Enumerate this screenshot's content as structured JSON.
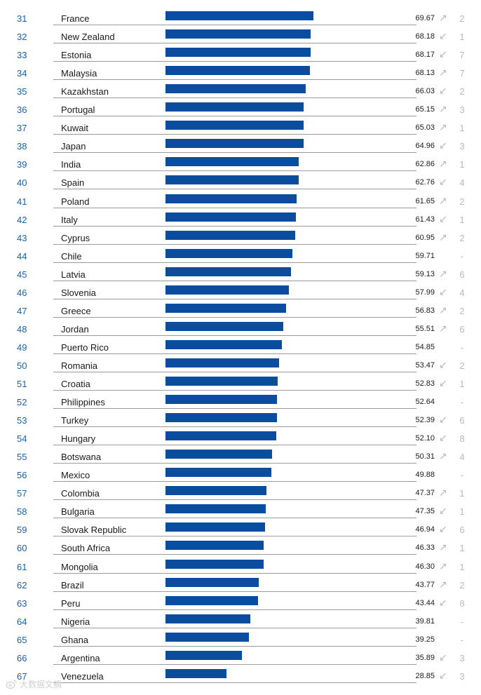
{
  "chart_data": {
    "type": "bar",
    "orientation": "horizontal",
    "title": "",
    "xlabel": "",
    "ylabel": "",
    "xlim": [
      0,
      100
    ],
    "colors": {
      "bar": "#0a4c9e",
      "rank": "#1d5fa8",
      "change": "#b9b9b9"
    },
    "rows": [
      {
        "rank": "31",
        "country": "France",
        "score": "69.67",
        "value": 69.67,
        "direction": "up",
        "change": "2"
      },
      {
        "rank": "32",
        "country": "New Zealand",
        "score": "68.18",
        "value": 68.18,
        "direction": "down",
        "change": "1"
      },
      {
        "rank": "33",
        "country": "Estonia",
        "score": "68.17",
        "value": 68.17,
        "direction": "down",
        "change": "7"
      },
      {
        "rank": "34",
        "country": "Malaysia",
        "score": "68.13",
        "value": 68.13,
        "direction": "up",
        "change": "7"
      },
      {
        "rank": "35",
        "country": "Kazakhstan",
        "score": "66.03",
        "value": 66.03,
        "direction": "down",
        "change": "2"
      },
      {
        "rank": "36",
        "country": "Portugal",
        "score": "65.15",
        "value": 65.15,
        "direction": "up",
        "change": "3"
      },
      {
        "rank": "37",
        "country": "Kuwait",
        "score": "65.03",
        "value": 65.03,
        "direction": "up",
        "change": "1"
      },
      {
        "rank": "38",
        "country": "Japan",
        "score": "64.96",
        "value": 64.96,
        "direction": "down",
        "change": "3"
      },
      {
        "rank": "39",
        "country": "India",
        "score": "62.86",
        "value": 62.86,
        "direction": "up",
        "change": "1"
      },
      {
        "rank": "40",
        "country": "Spain",
        "score": "62.76",
        "value": 62.76,
        "direction": "down",
        "change": "4"
      },
      {
        "rank": "41",
        "country": "Poland",
        "score": "61.65",
        "value": 61.65,
        "direction": "up",
        "change": "2"
      },
      {
        "rank": "42",
        "country": "Italy",
        "score": "61.43",
        "value": 61.43,
        "direction": "down",
        "change": "1"
      },
      {
        "rank": "43",
        "country": "Cyprus",
        "score": "60.95",
        "value": 60.95,
        "direction": "up",
        "change": "2"
      },
      {
        "rank": "44",
        "country": "Chile",
        "score": "59.71",
        "value": 59.71,
        "direction": "none",
        "change": "-"
      },
      {
        "rank": "45",
        "country": "Latvia",
        "score": "59.13",
        "value": 59.13,
        "direction": "up",
        "change": "6"
      },
      {
        "rank": "46",
        "country": "Slovenia",
        "score": "57.99",
        "value": 57.99,
        "direction": "down",
        "change": "4"
      },
      {
        "rank": "47",
        "country": "Greece",
        "score": "56.83",
        "value": 56.83,
        "direction": "up",
        "change": "2"
      },
      {
        "rank": "48",
        "country": "Jordan",
        "score": "55.51",
        "value": 55.51,
        "direction": "up",
        "change": "6"
      },
      {
        "rank": "49",
        "country": "Puerto Rico",
        "score": "54.85",
        "value": 54.85,
        "direction": "none",
        "change": "-"
      },
      {
        "rank": "50",
        "country": "Romania",
        "score": "53.47",
        "value": 53.47,
        "direction": "down",
        "change": "2"
      },
      {
        "rank": "51",
        "country": "Croatia",
        "score": "52.83",
        "value": 52.83,
        "direction": "down",
        "change": "1"
      },
      {
        "rank": "52",
        "country": "Philippines",
        "score": "52.64",
        "value": 52.64,
        "direction": "none",
        "change": "-"
      },
      {
        "rank": "53",
        "country": "Turkey",
        "score": "52.39",
        "value": 52.39,
        "direction": "down",
        "change": "6"
      },
      {
        "rank": "54",
        "country": "Hungary",
        "score": "52.10",
        "value": 52.1,
        "direction": "down",
        "change": "8"
      },
      {
        "rank": "55",
        "country": "Botswana",
        "score": "50.31",
        "value": 50.31,
        "direction": "up",
        "change": "4"
      },
      {
        "rank": "56",
        "country": "Mexico",
        "score": "49.88",
        "value": 49.88,
        "direction": "none",
        "change": "-"
      },
      {
        "rank": "57",
        "country": "Colombia",
        "score": "47.37",
        "value": 47.37,
        "direction": "up",
        "change": "1"
      },
      {
        "rank": "58",
        "country": "Bulgaria",
        "score": "47.35",
        "value": 47.35,
        "direction": "down",
        "change": "1"
      },
      {
        "rank": "59",
        "country": "Slovak Republic",
        "score": "46.94",
        "value": 46.94,
        "direction": "down",
        "change": "6"
      },
      {
        "rank": "60",
        "country": "South Africa",
        "score": "46.33",
        "value": 46.33,
        "direction": "up",
        "change": "1"
      },
      {
        "rank": "61",
        "country": "Mongolia",
        "score": "46.30",
        "value": 46.3,
        "direction": "up",
        "change": "1"
      },
      {
        "rank": "62",
        "country": "Brazil",
        "score": "43.77",
        "value": 43.77,
        "direction": "up",
        "change": "2"
      },
      {
        "rank": "63",
        "country": "Peru",
        "score": "43.44",
        "value": 43.44,
        "direction": "down",
        "change": "8"
      },
      {
        "rank": "64",
        "country": "Nigeria",
        "score": "39.81",
        "value": 39.81,
        "direction": "none",
        "change": "-"
      },
      {
        "rank": "65",
        "country": "Ghana",
        "score": "39.25",
        "value": 39.25,
        "direction": "none",
        "change": "-"
      },
      {
        "rank": "66",
        "country": "Argentina",
        "score": "35.89",
        "value": 35.89,
        "direction": "down",
        "change": "3"
      },
      {
        "rank": "67",
        "country": "Venezuela",
        "score": "28.85",
        "value": 28.85,
        "direction": "down",
        "change": "3"
      }
    ]
  },
  "watermark": {
    "text": "大数据文摘",
    "icon": "weibo-logo-icon"
  }
}
